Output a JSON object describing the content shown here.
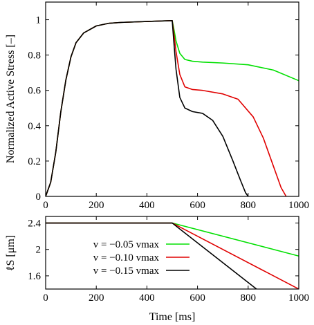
{
  "chart_data": [
    {
      "type": "line",
      "ylabel": "Normalized Active Stress [–]",
      "xlim": [
        0,
        1000
      ],
      "ylim": [
        0,
        1.1
      ],
      "xticks": [
        "0",
        "200",
        "400",
        "600",
        "800",
        "1000"
      ],
      "yticks": [
        "0",
        "0.2",
        "0.4",
        "0.6",
        "0.8",
        "1"
      ],
      "grid": false,
      "series": [
        {
          "color": "#00e000",
          "x": [
            0,
            20,
            40,
            60,
            80,
            100,
            120,
            150,
            200,
            250,
            300,
            400,
            500,
            505,
            515,
            530,
            550,
            580,
            620,
            700,
            800,
            900,
            1000
          ],
          "y": [
            0,
            0.08,
            0.25,
            0.48,
            0.66,
            0.79,
            0.87,
            0.925,
            0.965,
            0.98,
            0.985,
            0.99,
            0.995,
            0.96,
            0.88,
            0.81,
            0.775,
            0.765,
            0.76,
            0.755,
            0.745,
            0.715,
            0.655
          ]
        },
        {
          "color": "#e00000",
          "x": [
            0,
            20,
            40,
            60,
            80,
            100,
            120,
            150,
            200,
            250,
            300,
            400,
            500,
            505,
            515,
            530,
            550,
            580,
            620,
            700,
            760,
            820,
            860,
            900,
            930,
            950
          ],
          "y": [
            0,
            0.08,
            0.25,
            0.48,
            0.66,
            0.79,
            0.87,
            0.925,
            0.965,
            0.98,
            0.985,
            0.99,
            0.995,
            0.94,
            0.82,
            0.69,
            0.62,
            0.605,
            0.6,
            0.58,
            0.55,
            0.45,
            0.33,
            0.17,
            0.05,
            0
          ]
        },
        {
          "color": "#000000",
          "x": [
            0,
            20,
            40,
            60,
            80,
            100,
            120,
            150,
            200,
            250,
            300,
            400,
            500,
            505,
            515,
            530,
            550,
            580,
            620,
            660,
            700,
            740,
            770,
            790,
            800
          ],
          "y": [
            0,
            0.08,
            0.25,
            0.48,
            0.66,
            0.79,
            0.87,
            0.925,
            0.965,
            0.98,
            0.985,
            0.99,
            0.995,
            0.9,
            0.72,
            0.56,
            0.5,
            0.48,
            0.47,
            0.43,
            0.34,
            0.2,
            0.09,
            0.02,
            0
          ]
        }
      ]
    },
    {
      "type": "line",
      "xlabel": "Time [ms]",
      "ylabel": "ℓS [μm]",
      "xlim": [
        0,
        1000
      ],
      "ylim": [
        1.4,
        2.5
      ],
      "xticks": [
        "0",
        "200",
        "400",
        "600",
        "800",
        "1000"
      ],
      "yticks": [
        "1.6",
        "2",
        "2.4"
      ],
      "grid": false,
      "legend": "inside-left",
      "series": [
        {
          "name": "v = −0.05 vmax",
          "color": "#00e000",
          "x": [
            0,
            500,
            1000
          ],
          "y": [
            2.4,
            2.4,
            1.9
          ]
        },
        {
          "name": "v = −0.10 vmax",
          "color": "#e00000",
          "x": [
            0,
            500,
            1000
          ],
          "y": [
            2.4,
            2.4,
            1.4
          ]
        },
        {
          "name": "v = −0.15 vmax",
          "color": "#000000",
          "x": [
            0,
            500,
            833
          ],
          "y": [
            2.4,
            2.4,
            1.4
          ]
        }
      ]
    }
  ]
}
